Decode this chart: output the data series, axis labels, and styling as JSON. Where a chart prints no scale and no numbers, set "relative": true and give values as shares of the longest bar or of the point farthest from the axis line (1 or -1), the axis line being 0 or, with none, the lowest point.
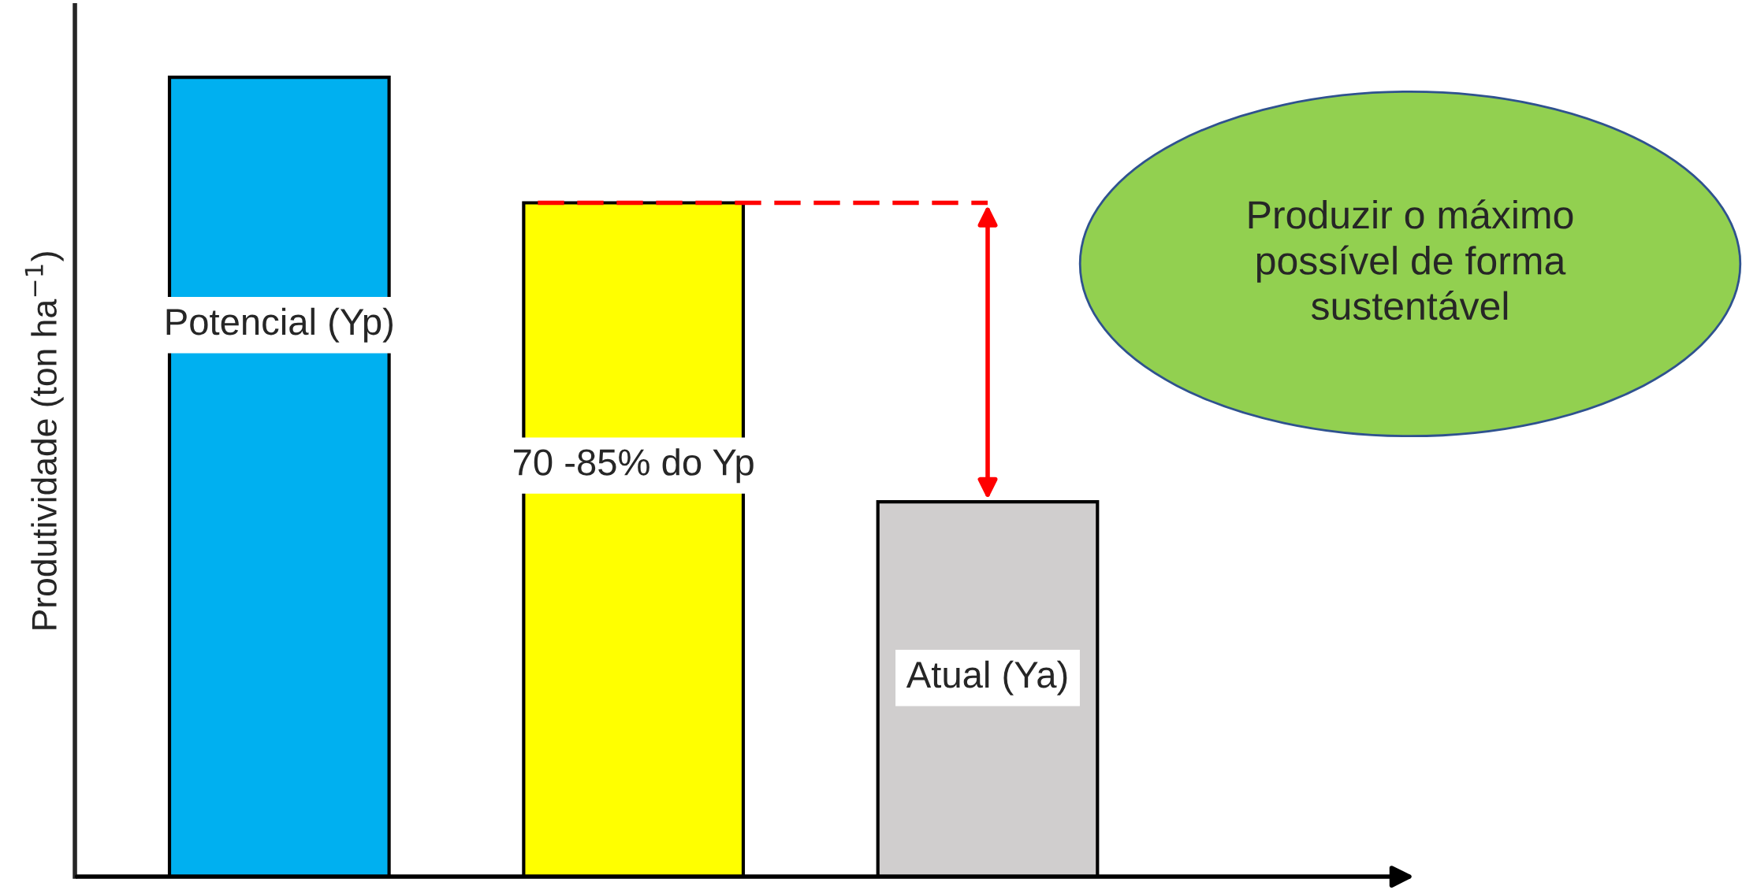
{
  "chart_data": {
    "type": "bar",
    "relative": true,
    "ylabel": "Produtividade (ton ha$^{−1}$)",
    "categories": [
      null,
      null,
      null
    ],
    "values": [
      1,
      0.843,
      0.469
    ],
    "colors": [
      "#00b0f0",
      "#ffff00",
      "#d0cece"
    ],
    "annotations": [
      "Potencial (Yp)",
      "70 -85% do Yp",
      "Atual (Ya)",
      "Produzir o máximo\npossível de forma\nsustentável"
    ],
    "ref_lines": [
      {
        "axis": "y",
        "value": 0.843,
        "color": "#ff0000",
        "line_style": "dashed"
      }
    ],
    "legend": false
  }
}
